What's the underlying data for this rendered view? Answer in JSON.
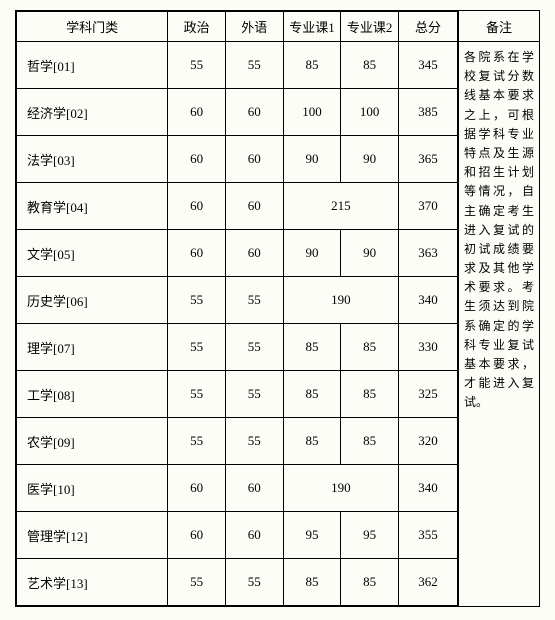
{
  "headers": {
    "subject": "学科门类",
    "politics": "政治",
    "foreign": "外语",
    "course1": "专业课1",
    "course2": "专业课2",
    "total": "总分",
    "remarks": "备注"
  },
  "rows": [
    {
      "subject": "哲学[01]",
      "politics": "55",
      "foreign": "55",
      "c1": "85",
      "c2": "85",
      "total": "345",
      "merged": false
    },
    {
      "subject": "经济学[02]",
      "politics": "60",
      "foreign": "60",
      "c1": "100",
      "c2": "100",
      "total": "385",
      "merged": false
    },
    {
      "subject": "法学[03]",
      "politics": "60",
      "foreign": "60",
      "c1": "90",
      "c2": "90",
      "total": "365",
      "merged": false
    },
    {
      "subject": "教育学[04]",
      "politics": "60",
      "foreign": "60",
      "c1": "215",
      "c2": "",
      "total": "370",
      "merged": true
    },
    {
      "subject": "文学[05]",
      "politics": "60",
      "foreign": "60",
      "c1": "90",
      "c2": "90",
      "total": "363",
      "merged": false
    },
    {
      "subject": "历史学[06]",
      "politics": "55",
      "foreign": "55",
      "c1": "190",
      "c2": "",
      "total": "340",
      "merged": true
    },
    {
      "subject": "理学[07]",
      "politics": "55",
      "foreign": "55",
      "c1": "85",
      "c2": "85",
      "total": "330",
      "merged": false
    },
    {
      "subject": "工学[08]",
      "politics": "55",
      "foreign": "55",
      "c1": "85",
      "c2": "85",
      "total": "325",
      "merged": false
    },
    {
      "subject": "农学[09]",
      "politics": "55",
      "foreign": "55",
      "c1": "85",
      "c2": "85",
      "total": "320",
      "merged": false
    },
    {
      "subject": "医学[10]",
      "politics": "60",
      "foreign": "60",
      "c1": "190",
      "c2": "",
      "total": "340",
      "merged": true
    },
    {
      "subject": "管理学[12]",
      "politics": "60",
      "foreign": "60",
      "c1": "95",
      "c2": "95",
      "total": "355",
      "merged": false
    },
    {
      "subject": "艺术学[13]",
      "politics": "55",
      "foreign": "55",
      "c1": "85",
      "c2": "85",
      "total": "362",
      "merged": false
    }
  ],
  "remarks_text": "各院系在学校复试分数线基本要求之上，可根据学科专业特点及生源和招生计划等情况，自主确定考生进入复试的初试成绩要求及其他学术要求。考生须达到院系确定的学科专业复试基本要求，才能进入复试。"
}
